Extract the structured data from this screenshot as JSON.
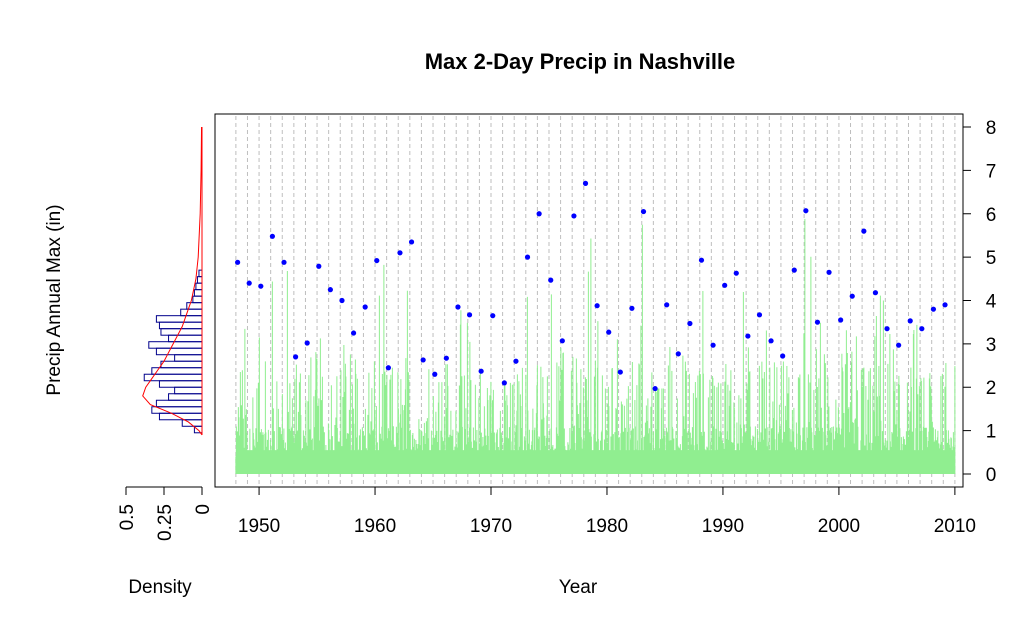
{
  "chart_data": {
    "type": "scatter",
    "title": "Max 2-Day Precip in Nashville",
    "xlabel": "Year",
    "ylabel": "Precip Annual Max (in)",
    "xlim": [
      1946.2,
      2010.7
    ],
    "ylim": [
      -0.3,
      8.3
    ],
    "x_ticks": [
      "1950",
      "1960",
      "1970",
      "1980",
      "1990",
      "2000",
      "2010"
    ],
    "y_ticks": [
      "0",
      "1",
      "2",
      "3",
      "4",
      "5",
      "6",
      "7",
      "8"
    ],
    "grid": "vertical dashed at each year",
    "colors": {
      "annual_max_points": "#0000ff",
      "daily_series": "#90ee90",
      "histogram": "#00008b",
      "density_curve": "#ff0000",
      "grid": "#bebebe"
    },
    "series": [
      {
        "kind": "annual_max_points",
        "x": [
          1948,
          1949,
          1950,
          1951,
          1952,
          1953,
          1954,
          1955,
          1956,
          1957,
          1958,
          1959,
          1960,
          1961,
          1962,
          1963,
          1964,
          1965,
          1966,
          1967,
          1968,
          1969,
          1970,
          1971,
          1972,
          1973,
          1974,
          1975,
          1976,
          1977,
          1978,
          1979,
          1980,
          1981,
          1982,
          1983,
          1984,
          1985,
          1986,
          1987,
          1988,
          1989,
          1990,
          1991,
          1992,
          1993,
          1994,
          1995,
          1996,
          1997,
          1998,
          1999,
          2000,
          2001,
          2002,
          2003,
          2004,
          2005,
          2006,
          2007,
          2008,
          2009
        ],
        "y": [
          4.88,
          4.4,
          4.33,
          5.48,
          4.88,
          2.7,
          3.02,
          4.79,
          4.25,
          4.0,
          3.25,
          3.85,
          4.92,
          2.45,
          5.1,
          5.35,
          2.63,
          2.3,
          2.67,
          3.85,
          3.67,
          2.37,
          3.65,
          2.1,
          2.6,
          5.0,
          6.0,
          4.47,
          3.07,
          5.95,
          6.7,
          3.88,
          3.27,
          2.35,
          3.82,
          6.05,
          1.97,
          3.9,
          2.77,
          3.47,
          4.93,
          2.97,
          4.35,
          4.63,
          3.18,
          3.67,
          3.07,
          2.72,
          4.7,
          6.07,
          3.5,
          4.65,
          3.55,
          4.1,
          5.6,
          4.18,
          3.35,
          2.97,
          3.53,
          3.35,
          3.8,
          3.9
        ],
        "note": "values estimated from the plot"
      },
      {
        "kind": "daily_series",
        "x_range": [
          1948,
          2010
        ],
        "y_range": [
          0,
          6.7
        ]
      }
    ],
    "density_panel": {
      "xlabel": "Density",
      "x_ticks": [
        "0.5",
        "0.25",
        "0"
      ],
      "xlim_reversed": [
        0.5,
        0
      ],
      "histogram_breaks": [
        0.95,
        1.1,
        1.25,
        1.4,
        1.55,
        1.7,
        1.85,
        2.0,
        2.15,
        2.3,
        2.45,
        2.6,
        2.75,
        2.9,
        3.05,
        3.2,
        3.35,
        3.5,
        3.65,
        3.8,
        3.95,
        4.1,
        4.25,
        4.4,
        4.55,
        4.7
      ],
      "histogram_density": [
        0.05,
        0.13,
        0.28,
        0.33,
        0.3,
        0.22,
        0.18,
        0.28,
        0.38,
        0.33,
        0.27,
        0.18,
        0.3,
        0.35,
        0.22,
        0.27,
        0.28,
        0.3,
        0.14,
        0.1,
        0.06,
        0.05,
        0.04,
        0.03,
        0.02
      ],
      "density_curve": {
        "y": [
          0.9,
          1.0,
          1.2,
          1.4,
          1.6,
          1.8,
          2.0,
          2.2,
          2.4,
          2.6,
          2.8,
          3.0,
          3.2,
          3.4,
          3.6,
          3.8,
          4.0,
          4.5,
          5.0,
          6.0,
          7.0,
          8.0
        ],
        "density": [
          0.0,
          0.02,
          0.09,
          0.2,
          0.34,
          0.39,
          0.37,
          0.33,
          0.29,
          0.25,
          0.22,
          0.19,
          0.16,
          0.13,
          0.11,
          0.09,
          0.07,
          0.04,
          0.025,
          0.012,
          0.006,
          0.003
        ]
      }
    }
  }
}
